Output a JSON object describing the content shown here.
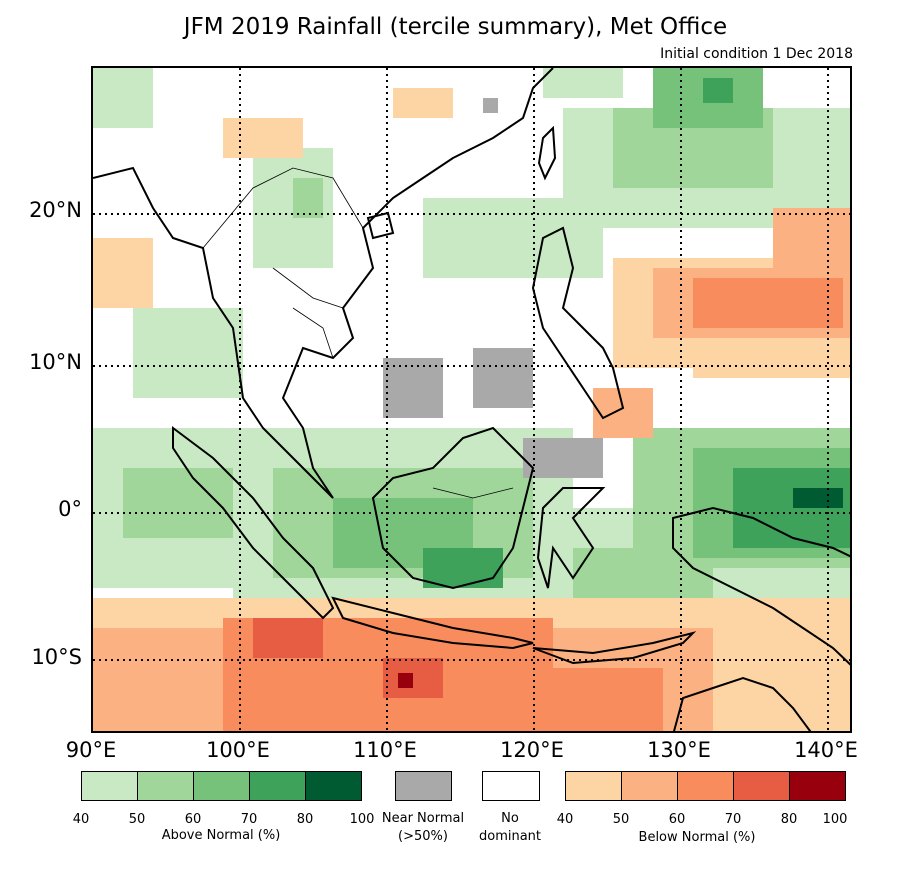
{
  "title": "JFM 2019 Rainfall (tercile summary), Met Office",
  "subtitle": "Initial condition 1 Dec 2018",
  "lat_labels": [
    "20°N",
    "10°N",
    "0°",
    "10°S"
  ],
  "lon_labels": [
    "90°E",
    "100°E",
    "110°E",
    "120°E",
    "130°E",
    "140°E"
  ],
  "legend": {
    "above": {
      "caption": "Above Normal (%)",
      "ticks": [
        "40",
        "50",
        "60",
        "70",
        "80",
        "100"
      ],
      "colors": [
        "#c9e9c4",
        "#a0d69a",
        "#77c27a",
        "#3ea25a",
        "#005a32"
      ]
    },
    "near": {
      "caption_line1": "Near Normal",
      "caption_line2": "(>50%)",
      "color": "#a9a9a9"
    },
    "none": {
      "caption_line1": "No",
      "caption_line2": "dominant",
      "color": "#ffffff"
    },
    "below": {
      "caption": "Below Normal (%)",
      "ticks": [
        "40",
        "50",
        "60",
        "70",
        "80",
        "100"
      ],
      "colors": [
        "#fdd4a3",
        "#fcb183",
        "#f88c5d",
        "#e75d44",
        "#99000d"
      ]
    }
  }
}
